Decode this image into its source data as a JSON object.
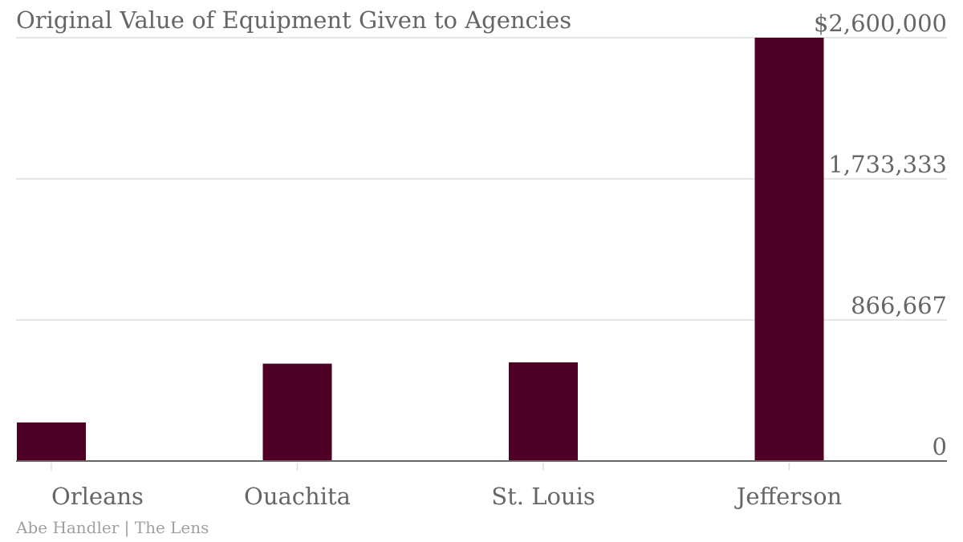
{
  "chart_data": {
    "type": "bar",
    "title": "Original Value of Equipment Given to Agencies",
    "categories": [
      "Orleans",
      "Ouachita",
      "St. Louis",
      "Jefferson"
    ],
    "values": [
      237000,
      598000,
      606000,
      2600000
    ],
    "ylim": [
      0,
      2600000
    ],
    "yticks": [
      0,
      866667,
      1733333,
      2600000
    ],
    "ytick_labels": [
      "0",
      "866,667",
      "1,733,333",
      "$2,600,000"
    ],
    "y_axis_position": "right",
    "grid": true,
    "bar_color": "#4d0023",
    "credit": "Abe Handler | The Lens"
  }
}
